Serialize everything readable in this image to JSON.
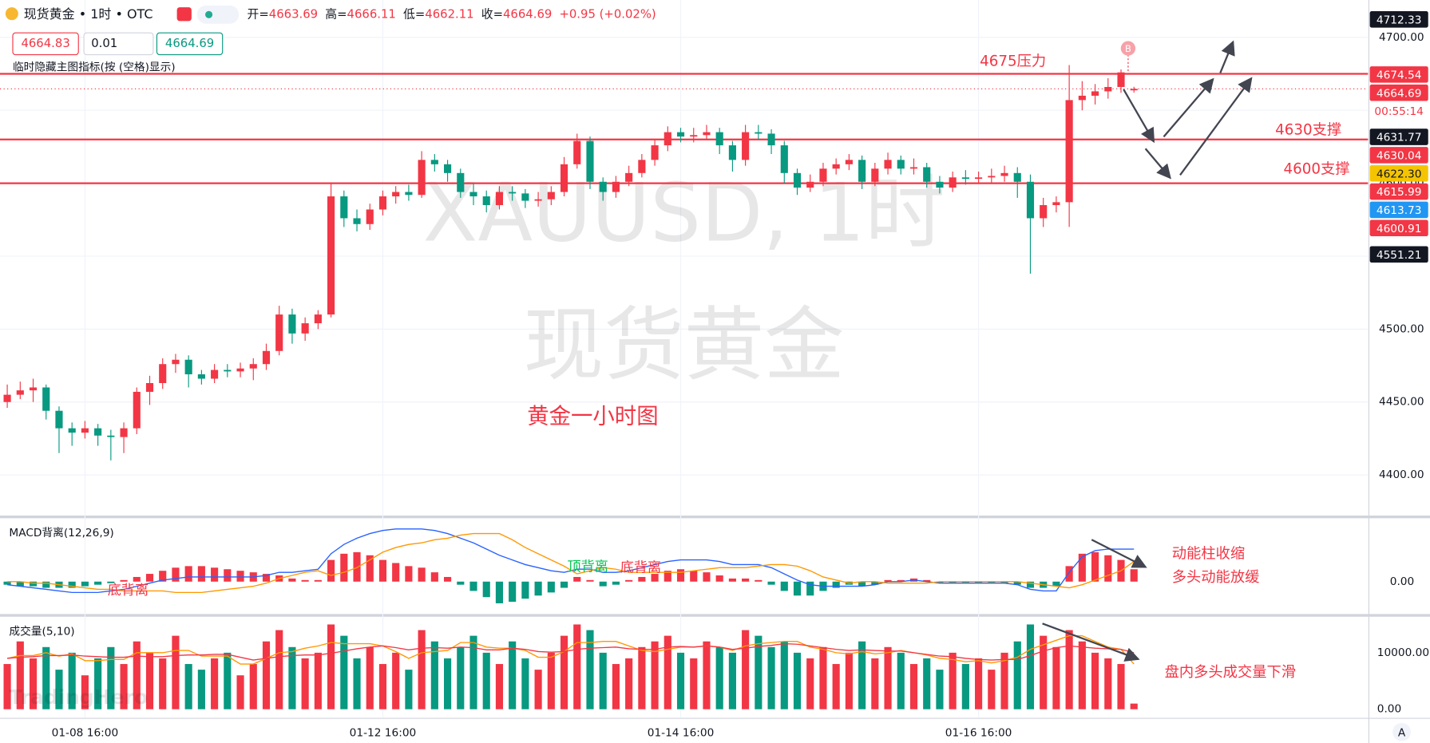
{
  "header": {
    "symbol": "现货黄金 • 1时 • OTC",
    "ohlc": [
      {
        "label": "开=",
        "value": "4663.69"
      },
      {
        "label": "高=",
        "value": "4666.11"
      },
      {
        "label": "低=",
        "value": "4662.11"
      },
      {
        "label": "收=",
        "value": "4664.69"
      }
    ],
    "change": "+0.95 (+0.02%)",
    "inputs": [
      "4664.83",
      "0.01",
      "4664.69"
    ],
    "logo": "TradingHero",
    "corner": "A"
  },
  "chart_data": [
    {
      "type": "candlestick",
      "watermark": [
        "XAUUSD, 1时",
        "现货黄金"
      ],
      "subtitle": "黄金一小时图",
      "hint": "临时隐藏主图指标(按 (空格)显示)",
      "up_color": "#f23645",
      "down_color": "#089981",
      "grid": true,
      "xlim": [
        -0.56,
        105.07
      ],
      "ylim": [
        4372.5,
        4725.6
      ],
      "xticks": [
        {
          "value": 6,
          "label": "01-08 16:00"
        },
        {
          "value": 29,
          "label": "01-12 16:00"
        },
        {
          "value": 52,
          "label": "01-14 16:00"
        },
        {
          "value": 75,
          "label": "01-16 16:00"
        }
      ],
      "yticks": [
        {
          "value": 4400,
          "label": "4400.00"
        },
        {
          "value": 4450,
          "label": "4450.00"
        },
        {
          "value": 4500,
          "label": "4500.00"
        },
        {
          "value": 4550,
          "label": "4550.00"
        },
        {
          "value": 4600,
          "label": "4600.00"
        },
        {
          "value": 4650,
          "label": "4650.00"
        },
        {
          "value": 4700,
          "label": "4700.00"
        }
      ],
      "levels": [
        {
          "value": 4675,
          "label": "4675压力"
        },
        {
          "value": 4630,
          "label": "4630支撑"
        },
        {
          "value": 4600,
          "label": "4600支撑"
        }
      ],
      "last_price": 4664.69,
      "countdown": "00:55:14",
      "marker": "B",
      "price_labels": [
        {
          "value": 4712.33,
          "label": "4712.33",
          "color": "#131722"
        },
        {
          "value": 4674.54,
          "label": "4674.54",
          "color": "#f23645"
        },
        {
          "value": 4664.69,
          "label": "4664.69",
          "color": "#f23645"
        },
        {
          "value": 4631.77,
          "label": "4631.77",
          "color": "#131722"
        },
        {
          "value": 4630.04,
          "label": "4630.04",
          "color": "#f23645"
        },
        {
          "value": 4622.3,
          "label": "4622.30",
          "color": "#f5c400"
        },
        {
          "value": 4615.99,
          "label": "4615.99",
          "color": "#f23645"
        },
        {
          "value": 4613.73,
          "label": "4613.73",
          "color": "#2196f3"
        },
        {
          "value": 4600.91,
          "label": "4600.91",
          "color": "#f23645"
        },
        {
          "value": 4551.21,
          "label": "4551.21",
          "color": "#131722"
        }
      ],
      "ohlc": [
        [
          4450,
          4462,
          4446,
          4455
        ],
        [
          4455,
          4464,
          4452,
          4458
        ],
        [
          4458,
          4466,
          4450,
          4460
        ],
        [
          4460,
          4462,
          4438,
          4444
        ],
        [
          4444,
          4447,
          4415,
          4432
        ],
        [
          4432,
          4436,
          4420,
          4429
        ],
        [
          4429,
          4437,
          4425,
          4432
        ],
        [
          4432,
          4435,
          4420,
          4427
        ],
        [
          4427,
          4431,
          4410,
          4426
        ],
        [
          4426,
          4436,
          4415,
          4432
        ],
        [
          4432,
          4460,
          4428,
          4457
        ],
        [
          4457,
          4468,
          4448,
          4463
        ],
        [
          4463,
          4480,
          4459,
          4476
        ],
        [
          4476,
          4483,
          4470,
          4479
        ],
        [
          4479,
          4482,
          4460,
          4469
        ],
        [
          4469,
          4472,
          4462,
          4466
        ],
        [
          4466,
          4476,
          4463,
          4472
        ],
        [
          4472,
          4476,
          4467,
          4471
        ],
        [
          4471,
          4477,
          4467,
          4473
        ],
        [
          4473,
          4480,
          4465,
          4476
        ],
        [
          4476,
          4490,
          4472,
          4485
        ],
        [
          4485,
          4516,
          4482,
          4510
        ],
        [
          4510,
          4514,
          4490,
          4497
        ],
        [
          4497,
          4508,
          4492,
          4504
        ],
        [
          4504,
          4513,
          4500,
          4510
        ],
        [
          4510,
          4600,
          4508,
          4591
        ],
        [
          4591,
          4595,
          4570,
          4576
        ],
        [
          4576,
          4582,
          4567,
          4572
        ],
        [
          4572,
          4586,
          4568,
          4582
        ],
        [
          4582,
          4595,
          4578,
          4591
        ],
        [
          4591,
          4598,
          4586,
          4594
        ],
        [
          4594,
          4599,
          4588,
          4592
        ],
        [
          4592,
          4622,
          4590,
          4616
        ],
        [
          4616,
          4620,
          4608,
          4613
        ],
        [
          4613,
          4616,
          4601,
          4607
        ],
        [
          4607,
          4610,
          4590,
          4594
        ],
        [
          4594,
          4600,
          4585,
          4591
        ],
        [
          4591,
          4595,
          4580,
          4585
        ],
        [
          4585,
          4598,
          4582,
          4594
        ],
        [
          4594,
          4598,
          4588,
          4593
        ],
        [
          4593,
          4596,
          4583,
          4588
        ],
        [
          4588,
          4594,
          4584,
          4589
        ],
        [
          4589,
          4598,
          4585,
          4594
        ],
        [
          4594,
          4618,
          4591,
          4613
        ],
        [
          4613,
          4634,
          4610,
          4629
        ],
        [
          4629,
          4632,
          4596,
          4601
        ],
        [
          4601,
          4604,
          4588,
          4594
        ],
        [
          4594,
          4605,
          4590,
          4601
        ],
        [
          4601,
          4612,
          4598,
          4607
        ],
        [
          4607,
          4620,
          4604,
          4616
        ],
        [
          4616,
          4630,
          4612,
          4626
        ],
        [
          4626,
          4639,
          4622,
          4635
        ],
        [
          4635,
          4638,
          4628,
          4632
        ],
        [
          4632,
          4638,
          4628,
          4633
        ],
        [
          4633,
          4640,
          4630,
          4635
        ],
        [
          4635,
          4638,
          4620,
          4626
        ],
        [
          4626,
          4629,
          4608,
          4616
        ],
        [
          4616,
          4640,
          4612,
          4635
        ],
        [
          4635,
          4640,
          4630,
          4634
        ],
        [
          4634,
          4637,
          4620,
          4626
        ],
        [
          4626,
          4629,
          4600,
          4607
        ],
        [
          4607,
          4610,
          4592,
          4597
        ],
        [
          4597,
          4606,
          4594,
          4601
        ],
        [
          4601,
          4614,
          4598,
          4610
        ],
        [
          4610,
          4617,
          4606,
          4613
        ],
        [
          4613,
          4620,
          4609,
          4616
        ],
        [
          4616,
          4619,
          4596,
          4601
        ],
        [
          4601,
          4614,
          4598,
          4610
        ],
        [
          4610,
          4621,
          4606,
          4616
        ],
        [
          4616,
          4619,
          4606,
          4610
        ],
        [
          4610,
          4617,
          4606,
          4611
        ],
        [
          4611,
          4614,
          4597,
          4601
        ],
        [
          4601,
          4605,
          4593,
          4597
        ],
        [
          4597,
          4608,
          4594,
          4604
        ],
        [
          4604,
          4609,
          4599,
          4603
        ],
        [
          4603,
          4608,
          4600,
          4604
        ],
        [
          4604,
          4610,
          4600,
          4605
        ],
        [
          4605,
          4612,
          4601,
          4607
        ],
        [
          4607,
          4611,
          4590,
          4601
        ],
        [
          4601,
          4606,
          4538,
          4576
        ],
        [
          4576,
          4590,
          4570,
          4585
        ],
        [
          4585,
          4591,
          4580,
          4587
        ],
        [
          4587,
          4681,
          4570,
          4657
        ],
        [
          4657,
          4670,
          4650,
          4660
        ],
        [
          4660,
          4668,
          4654,
          4663
        ],
        [
          4663,
          4672,
          4658,
          4666
        ],
        [
          4666,
          4678,
          4662,
          4676
        ],
        [
          4663.69,
          4666.11,
          4662.11,
          4664.69
        ]
      ]
    },
    {
      "type": "macd",
      "title": "MACD背离(12,26,9)",
      "ylim": [
        -10,
        20
      ],
      "yticks": [
        {
          "value": 0,
          "label": "0.00"
        }
      ],
      "dif_color": "#2962ff",
      "dea_color": "#ff9800",
      "labels": [
        "顶背离",
        "底背离",
        "底背离"
      ],
      "notes": [
        "动能柱收缩",
        "多头动能放缓"
      ],
      "hist": [
        -1,
        -1.5,
        -1.5,
        -2,
        -2,
        -2,
        -1.5,
        -1,
        -0.5,
        0.5,
        1.5,
        2.5,
        3.5,
        4.5,
        5,
        5,
        4.5,
        4,
        3.5,
        3,
        2.5,
        2,
        1,
        0.5,
        0.5,
        7,
        9,
        9.5,
        8.5,
        7,
        6,
        5,
        4.5,
        3,
        1.5,
        -1,
        -3,
        -5,
        -7,
        -6.5,
        -5.5,
        -4.5,
        -3.5,
        -2,
        1.5,
        0.5,
        -1.5,
        -1,
        0.5,
        1.5,
        2.5,
        3.5,
        4,
        3.5,
        3,
        2,
        1,
        1,
        0.5,
        -1,
        -3,
        -4.5,
        -4.5,
        -3,
        -2,
        -1,
        -1.5,
        -1,
        0.5,
        0.5,
        1,
        0.5,
        -0.5,
        -0.5,
        -0.5,
        -0.5,
        -0.5,
        -0.5,
        -1,
        -2,
        -2,
        -1.5,
        5,
        9,
        9.5,
        8.5,
        7,
        4
      ],
      "dif": [
        -1,
        -1.5,
        -2,
        -2.5,
        -3,
        -3.5,
        -3.5,
        -3.5,
        -3,
        -2.5,
        -1.5,
        -0.5,
        0.5,
        1,
        1.5,
        1.5,
        1.5,
        1.5,
        1.5,
        1.5,
        2,
        3,
        3,
        3.5,
        4,
        9,
        12,
        14,
        15.5,
        16.5,
        17,
        17,
        17,
        16.5,
        15.5,
        14,
        12.5,
        10.5,
        8.5,
        7,
        5.5,
        4.5,
        3.5,
        3,
        4,
        4,
        3,
        3,
        3.5,
        4.5,
        5.5,
        6.5,
        7,
        7,
        7,
        6.5,
        5.5,
        5.5,
        5.5,
        4.5,
        2.5,
        0.5,
        -1,
        -1.5,
        -1.5,
        -1.5,
        -1.5,
        -1,
        0,
        0,
        0.5,
        0,
        -0.5,
        -0.5,
        -0.5,
        -0.5,
        -0.5,
        -0.5,
        -1,
        -2.5,
        -3,
        -3,
        3,
        8,
        10,
        10.5,
        10.5,
        10.5
      ],
      "dea": [
        0,
        0,
        -0.5,
        -0.5,
        -1,
        -1.5,
        -2,
        -2.5,
        -2.5,
        -3,
        -3,
        -3,
        -3,
        -3.5,
        -3.5,
        -3.5,
        -3,
        -2.5,
        -2,
        -1.5,
        -0.5,
        1,
        2,
        3,
        3.5,
        2,
        3,
        4.5,
        7,
        9.5,
        11,
        12,
        12.5,
        13.5,
        14,
        15,
        15.5,
        15.5,
        15.5,
        13.5,
        11,
        9,
        7,
        5,
        2.5,
        3.5,
        4.5,
        4,
        3,
        3,
        3,
        3,
        3,
        3.5,
        4,
        4.5,
        4.5,
        4.5,
        5,
        5.5,
        5.5,
        5,
        3.5,
        1.5,
        0.5,
        -0.5,
        0,
        0,
        -0.5,
        -0.5,
        -0.5,
        -0.5,
        0,
        0,
        0,
        0,
        0,
        0,
        0,
        -0.5,
        -1,
        -1.5,
        -2,
        -1,
        0.5,
        2,
        3.5,
        6.5
      ]
    },
    {
      "type": "volume",
      "title": "成交量(5,10)",
      "ylim": [
        0,
        15806
      ],
      "yticks": [
        {
          "value": 0,
          "label": "0.00"
        },
        {
          "value": 10000,
          "label": "10000.00"
        }
      ],
      "ma5_color": "#ff9800",
      "ma10_color": "#f23645",
      "note": "盘内多头成交量下滑",
      "values": [
        8000,
        12000,
        9000,
        11000,
        7000,
        10000,
        6000,
        9000,
        11000,
        8000,
        12000,
        10000,
        9000,
        13000,
        8000,
        7000,
        9000,
        10000,
        6000,
        8000,
        12000,
        14000,
        11000,
        9000,
        10000,
        15000,
        13000,
        9000,
        11000,
        8000,
        10000,
        7000,
        14000,
        12000,
        9000,
        11000,
        13000,
        10000,
        8000,
        12000,
        9000,
        7000,
        10000,
        13000,
        15000,
        14000,
        10000,
        8000,
        9000,
        11000,
        12000,
        13000,
        10000,
        9000,
        12000,
        11000,
        10000,
        14000,
        13000,
        11000,
        12000,
        10000,
        9000,
        11000,
        8000,
        10000,
        12000,
        9000,
        11000,
        10000,
        8000,
        9000,
        7000,
        10000,
        8000,
        9000,
        7000,
        10000,
        12000,
        15000,
        13000,
        11000,
        14000,
        12000,
        10000,
        9000,
        8000,
        1000
      ],
      "ma5": [
        9000,
        9500,
        9500,
        10000,
        9400,
        9800,
        8600,
        8600,
        8800,
        8800,
        10000,
        10000,
        10000,
        10400,
        10400,
        9400,
        9400,
        9400,
        8000,
        8000,
        9000,
        10000,
        10200,
        10800,
        11200,
        11800,
        11600,
        11600,
        11600,
        11200,
        10200,
        9000,
        10000,
        10200,
        10400,
        11800,
        11800,
        11000,
        10800,
        10800,
        10400,
        9200,
        9200,
        10200,
        11800,
        11800,
        12000,
        12000,
        11200,
        10400,
        10200,
        10600,
        11000,
        11000,
        11200,
        11000,
        10400,
        11200,
        11600,
        11800,
        12000,
        12000,
        11000,
        10600,
        10000,
        9800,
        10200,
        9800,
        10000,
        10400,
        10000,
        9600,
        9000,
        8800,
        8400,
        8600,
        8200,
        8600,
        9200,
        10600,
        11400,
        12200,
        13000,
        13000,
        12000,
        11000,
        10600,
        8000
      ],
      "ma10": [
        9000,
        9200,
        9300,
        9500,
        9500,
        9600,
        9400,
        9300,
        9200,
        9200,
        9400,
        9300,
        9300,
        9500,
        9600,
        9600,
        9700,
        9700,
        9200,
        8700,
        9000,
        9300,
        9500,
        9600,
        9600,
        9900,
        10300,
        10700,
        11000,
        11200,
        10900,
        10500,
        10800,
        10900,
        10800,
        11000,
        10900,
        10500,
        10500,
        10800,
        10600,
        10200,
        10100,
        10200,
        10600,
        10800,
        10900,
        11000,
        10700,
        10600,
        10600,
        11000,
        11100,
        11000,
        11200,
        11000,
        10600,
        10800,
        11100,
        11300,
        11600,
        11500,
        11200,
        10900,
        10600,
        10400,
        10500,
        10400,
        10300,
        10300,
        10000,
        9700,
        9400,
        9300,
        9000,
        8800,
        8700,
        8800,
        8800,
        9500,
        10300,
        10900,
        11200,
        11000,
        10800,
        10700,
        10600,
        10000
      ]
    }
  ]
}
